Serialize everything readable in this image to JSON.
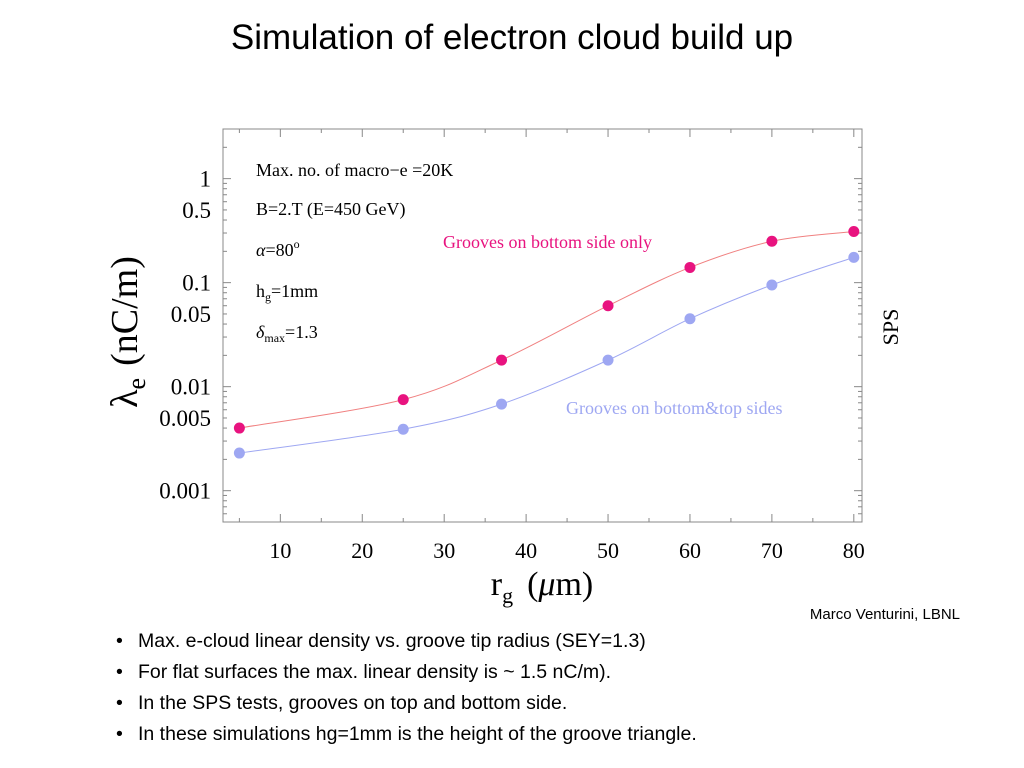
{
  "slide": {
    "title": "Simulation of electron cloud build up",
    "credit": "Marco Venturini, LBNL",
    "bullets": [
      "Max. e-cloud linear density vs. groove tip radius (SEY=1.3)",
      "For flat surfaces the max. linear density is ~ 1.5  nC/m).",
      "In the SPS tests, grooves on top and bottom side.",
      "In these simulations hg=1mm is the height of the groove triangle."
    ]
  },
  "chart_data": {
    "type": "scatter",
    "x_axis": {
      "label_main": "r",
      "label_sub": "g",
      "label_unit_open": "(",
      "label_unit_mu": "μ",
      "label_unit_rest": "m)",
      "range": [
        3,
        81
      ],
      "ticks": [
        10,
        20,
        30,
        40,
        50,
        60,
        70,
        80
      ],
      "tick_labels": [
        "10",
        "20",
        "30",
        "40",
        "50",
        "60",
        "70",
        "80"
      ]
    },
    "y_axis": {
      "scale": "log",
      "label_main": "λ",
      "label_sub": "e",
      "label_unit": "(nC/m)",
      "range": [
        0.0005,
        3
      ],
      "ticks": [
        0.001,
        0.005,
        0.01,
        0.05,
        0.1,
        0.5,
        1
      ],
      "tick_labels": [
        "0.001",
        "0.005",
        "0.01",
        "0.05",
        "0.1",
        "0.5",
        "1"
      ]
    },
    "side_label": "SPS",
    "annotations": [
      {
        "text": "Max. no. of macro−e =20K"
      },
      {
        "text": "B=2.T (E=450 GeV)"
      },
      {
        "text_main": "α",
        "text_rest": "=80",
        "text_sup": "o"
      },
      {
        "text_main": "h",
        "text_sub": "g",
        "text_rest": "=1mm"
      },
      {
        "text_main": "δ",
        "text_sub": "max",
        "text_rest": "=1.3"
      }
    ],
    "grid": false,
    "series": [
      {
        "name": "Grooves on bottom side only",
        "color": "#e8137f",
        "line_color": "#f08080",
        "x": [
          5,
          25,
          37,
          50,
          60,
          70,
          80
        ],
        "y": [
          0.004,
          0.0075,
          0.018,
          0.06,
          0.14,
          0.25,
          0.31
        ]
      },
      {
        "name": "Grooves on bottom&top sides",
        "color": "#9ea7f2",
        "line_color": "#9ea7f2",
        "x": [
          5,
          25,
          37,
          50,
          60,
          70,
          80
        ],
        "y": [
          0.0023,
          0.0039,
          0.0068,
          0.018,
          0.045,
          0.095,
          0.175
        ]
      }
    ]
  }
}
